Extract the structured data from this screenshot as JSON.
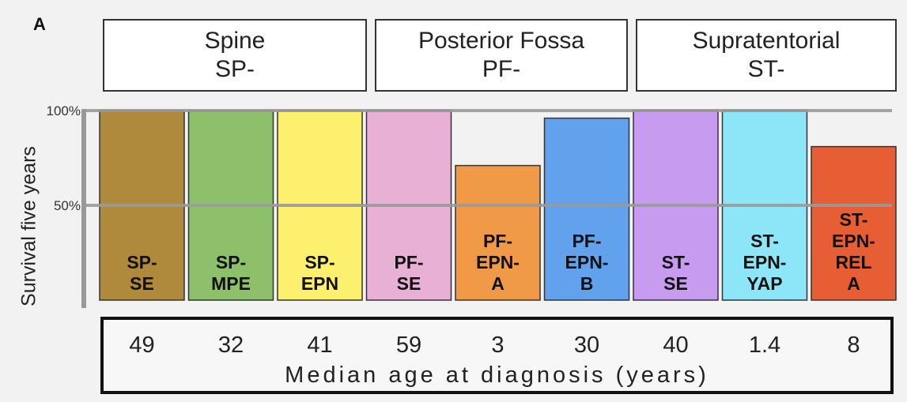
{
  "panel_label": "A",
  "groups": [
    {
      "line1": "Spine",
      "line2": "SP-"
    },
    {
      "line1": "Posterior Fossa",
      "line2": "PF-"
    },
    {
      "line1": "Supratentorial",
      "line2": "ST-"
    }
  ],
  "chart_data": {
    "type": "bar",
    "ylabel": "Survival five years",
    "ylim": [
      0,
      100
    ],
    "yticks": [
      "50%",
      "100%"
    ],
    "categories": [
      [
        "SP-",
        "SE"
      ],
      [
        "SP-",
        "MPE"
      ],
      [
        "SP-",
        "EPN"
      ],
      [
        "PF-",
        "SE"
      ],
      [
        "PF-",
        "EPN-",
        "A"
      ],
      [
        "PF-",
        "EPN-",
        "B"
      ],
      [
        "ST-",
        "SE"
      ],
      [
        "ST-",
        "EPN-",
        "YAP"
      ],
      [
        "ST-",
        "EPN-",
        "REL",
        "A"
      ]
    ],
    "values": [
      100,
      100,
      100,
      100,
      71,
      96,
      100,
      100,
      81
    ],
    "colors": [
      "#b08a3c",
      "#8ec06c",
      "#fcf06e",
      "#e8b0d4",
      "#f09a48",
      "#62a2ec",
      "#c79cf0",
      "#8ce6f8",
      "#e85e34"
    ],
    "median_age": {
      "title": "Median age at diagnosis (years)",
      "values": [
        "49",
        "32",
        "41",
        "59",
        "3",
        "30",
        "40",
        "1.4",
        "8"
      ]
    }
  }
}
